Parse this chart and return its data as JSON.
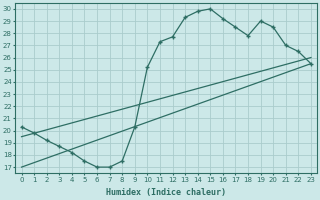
{
  "xlabel": "Humidex (Indice chaleur)",
  "ylabel": "",
  "xlim": [
    -0.5,
    23.5
  ],
  "ylim": [
    16.5,
    30.5
  ],
  "xticks": [
    0,
    1,
    2,
    3,
    4,
    5,
    6,
    7,
    8,
    9,
    10,
    11,
    12,
    13,
    14,
    15,
    16,
    17,
    18,
    19,
    20,
    21,
    22,
    23
  ],
  "yticks": [
    17,
    18,
    19,
    20,
    21,
    22,
    23,
    24,
    25,
    26,
    27,
    28,
    29,
    30
  ],
  "bg_color": "#cce8e8",
  "grid_color": "#aacccc",
  "line_color": "#2e6e64",
  "curve1_x": [
    0,
    1,
    2,
    3,
    4,
    5,
    6,
    7,
    8,
    9,
    10,
    11,
    12,
    13,
    14,
    15,
    16,
    17,
    18,
    19,
    20,
    21,
    22,
    23
  ],
  "curve1_y": [
    20.3,
    19.8,
    19.2,
    18.7,
    18.2,
    17.5,
    17.0,
    17.0,
    17.5,
    20.3,
    25.2,
    27.3,
    27.7,
    29.3,
    29.8,
    30.0,
    29.2,
    28.5,
    27.8,
    29.0,
    28.5,
    27.0,
    26.5,
    25.5
  ],
  "curve2_x": [
    0,
    23
  ],
  "curve2_y": [
    19.5,
    26.0
  ],
  "curve3_x": [
    0,
    23
  ],
  "curve3_y": [
    17.0,
    25.5
  ]
}
